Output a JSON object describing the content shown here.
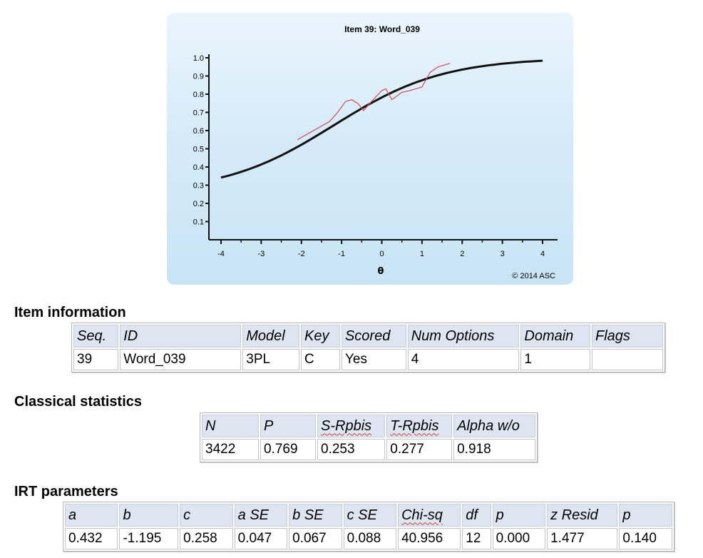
{
  "chart_data": {
    "type": "line",
    "title": "Item 39: Word_039",
    "xlabel": "θ",
    "ylabel": "",
    "copyright": "© 2014 ASC",
    "xlim": [
      -4,
      4
    ],
    "ylim": [
      0,
      1.0
    ],
    "x_ticks": [
      "-4",
      "-3",
      "-2",
      "-1",
      "0",
      "1",
      "2",
      "3",
      "4"
    ],
    "y_ticks": [
      "0.1",
      "0.2",
      "0.3",
      "0.4",
      "0.5",
      "0.6",
      "0.7",
      "0.8",
      "0.9",
      "1.0"
    ],
    "grid": false,
    "irt_params": {
      "a": 0.432,
      "b": -1.195,
      "c": 0.258
    },
    "series": [
      {
        "color": "#111111",
        "x": [
          -4.0,
          -3.5,
          -3.0,
          -2.5,
          -2.0,
          -1.5,
          -1.0,
          -0.5,
          0.0,
          0.5,
          1.0,
          1.5,
          2.0,
          2.5,
          3.0,
          3.5,
          4.0
        ],
        "y": [
          0.34,
          0.37,
          0.4,
          0.45,
          0.5,
          0.56,
          0.63,
          0.7,
          0.76,
          0.82,
          0.86,
          0.9,
          0.93,
          0.95,
          0.97,
          0.98,
          0.98
        ]
      },
      {
        "color": "#d24a52",
        "x": [
          -2.1,
          -1.7,
          -1.3,
          -1.1,
          -0.9,
          -0.75,
          -0.6,
          -0.45,
          -0.3,
          0.0,
          0.1,
          0.25,
          0.5,
          0.7,
          0.85,
          1.0,
          1.2,
          1.4,
          1.7
        ],
        "y": [
          0.55,
          0.6,
          0.65,
          0.7,
          0.76,
          0.77,
          0.75,
          0.71,
          0.75,
          0.82,
          0.83,
          0.77,
          0.81,
          0.82,
          0.83,
          0.84,
          0.92,
          0.95,
          0.97
        ]
      }
    ]
  },
  "item_info": {
    "title": "Item information",
    "headers": [
      "Seq.",
      "ID",
      "Model",
      "Key",
      "Scored",
      "Num Options",
      "Domain",
      "Flags"
    ],
    "rows": [
      [
        "39",
        "Word_039",
        "3PL",
        "C",
        "Yes",
        "4",
        "1",
        ""
      ]
    ]
  },
  "classical": {
    "title": "Classical statistics",
    "headers": [
      "N",
      "P",
      "S-Rpbis",
      "T-Rpbis",
      "Alpha w/o"
    ],
    "rows": [
      [
        "3422",
        "0.769",
        "0.253",
        "0.277",
        "0.918"
      ]
    ]
  },
  "irt": {
    "title": "IRT parameters",
    "headers": [
      "a",
      "b",
      "c",
      "a SE",
      "b SE",
      "c SE",
      "Chi-sq",
      "df",
      "p",
      "z Resid",
      "p"
    ],
    "rows": [
      [
        "0.432",
        "-1.195",
        "0.258",
        "0.047",
        "0.067",
        "0.088",
        "40.956",
        "12",
        "0.000",
        "1.477",
        "0.140"
      ]
    ]
  }
}
